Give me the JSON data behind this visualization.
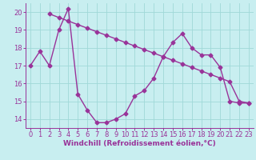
{
  "line1_x": [
    0,
    1,
    2,
    3,
    4,
    5,
    6,
    7,
    8,
    9,
    10,
    11,
    12,
    13,
    14,
    15,
    16,
    17,
    18,
    19,
    20,
    21,
    22,
    23
  ],
  "line1_y": [
    17.0,
    17.8,
    17.0,
    19.0,
    20.2,
    15.4,
    14.5,
    13.8,
    13.8,
    14.0,
    14.3,
    15.3,
    15.6,
    16.3,
    17.5,
    18.3,
    18.8,
    18.0,
    17.6,
    17.6,
    16.9,
    15.0,
    14.9,
    14.9
  ],
  "line2_x": [
    2,
    3,
    4,
    5,
    6,
    7,
    8,
    9,
    10,
    11,
    12,
    13,
    14,
    15,
    16,
    17,
    18,
    19,
    20,
    21,
    22,
    23
  ],
  "line2_y": [
    19.9,
    19.7,
    19.5,
    19.3,
    19.1,
    18.9,
    18.7,
    18.5,
    18.3,
    18.1,
    17.9,
    17.7,
    17.5,
    17.3,
    17.1,
    16.9,
    16.7,
    16.5,
    16.3,
    16.1,
    15.0,
    14.9
  ],
  "line_color": "#993399",
  "bg_color": "#c8eef0",
  "grid_color": "#a0d8d8",
  "xlabel": "Windchill (Refroidissement éolien,°C)",
  "xlim": [
    -0.5,
    23.5
  ],
  "ylim": [
    13.5,
    20.5
  ],
  "yticks": [
    14,
    15,
    16,
    17,
    18,
    19,
    20
  ],
  "xticks": [
    0,
    1,
    2,
    3,
    4,
    5,
    6,
    7,
    8,
    9,
    10,
    11,
    12,
    13,
    14,
    15,
    16,
    17,
    18,
    19,
    20,
    21,
    22,
    23
  ],
  "marker": "D",
  "markersize": 2.5,
  "linewidth": 1.0,
  "xlabel_fontsize": 6.5,
  "tick_fontsize": 6.0,
  "figwidth": 3.2,
  "figheight": 2.0,
  "dpi": 100
}
